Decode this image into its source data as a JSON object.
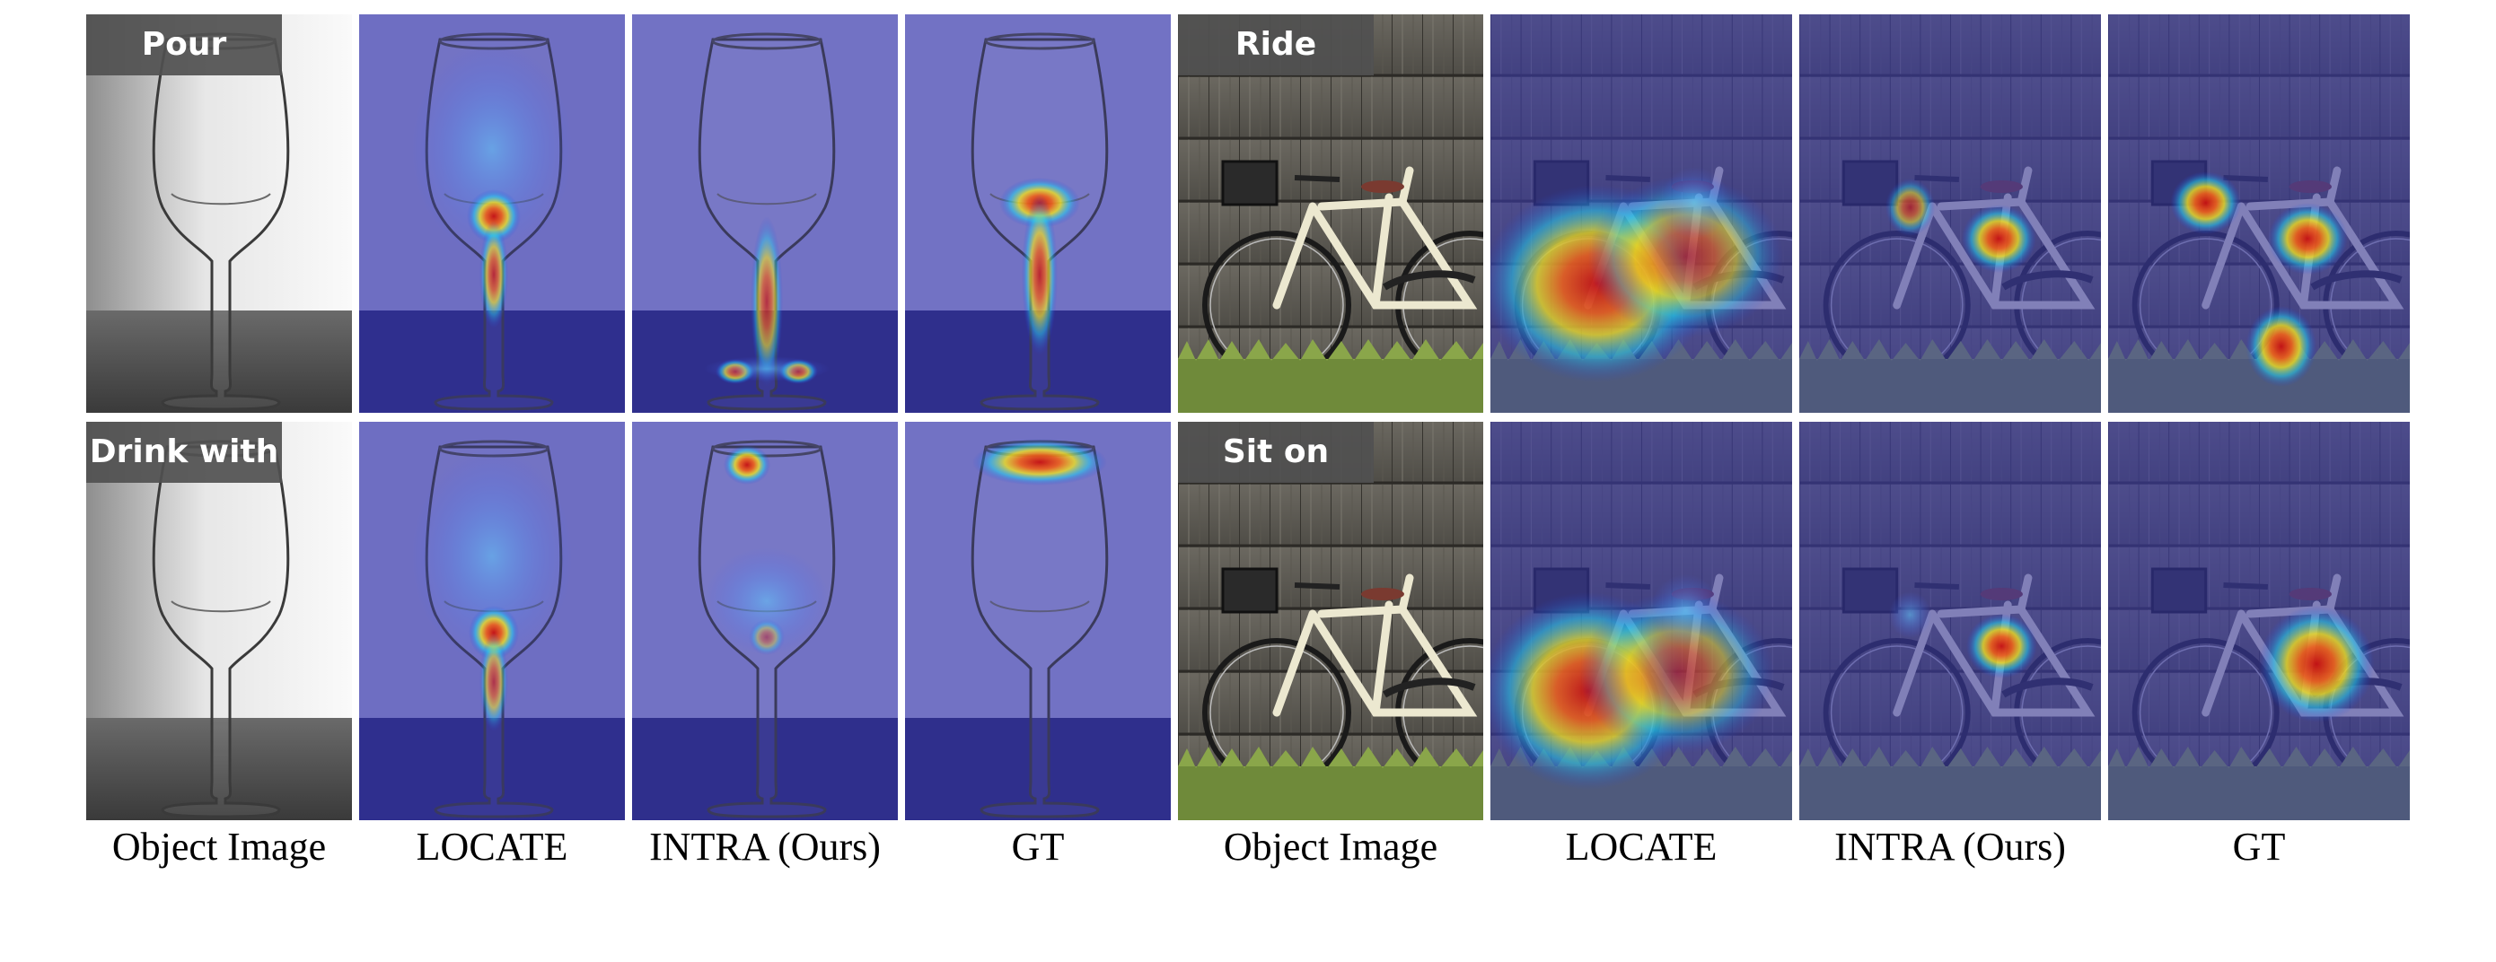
{
  "figure": {
    "columns": [
      "Object Image",
      "LOCATE",
      "INTRA (Ours)",
      "GT",
      "Object Image",
      "LOCATE",
      "INTRA (Ours)",
      "GT"
    ],
    "rows": [
      {
        "glass_affordance": "Pour",
        "bike_affordance": "Ride"
      },
      {
        "glass_affordance": "Drink with",
        "bike_affordance": "Sit on"
      }
    ]
  },
  "colors": {
    "overlay": "#3a3aa8",
    "heat_hot": "#e02010",
    "heat_warm": "#f0e020",
    "heat_cool": "#20c0f0"
  }
}
